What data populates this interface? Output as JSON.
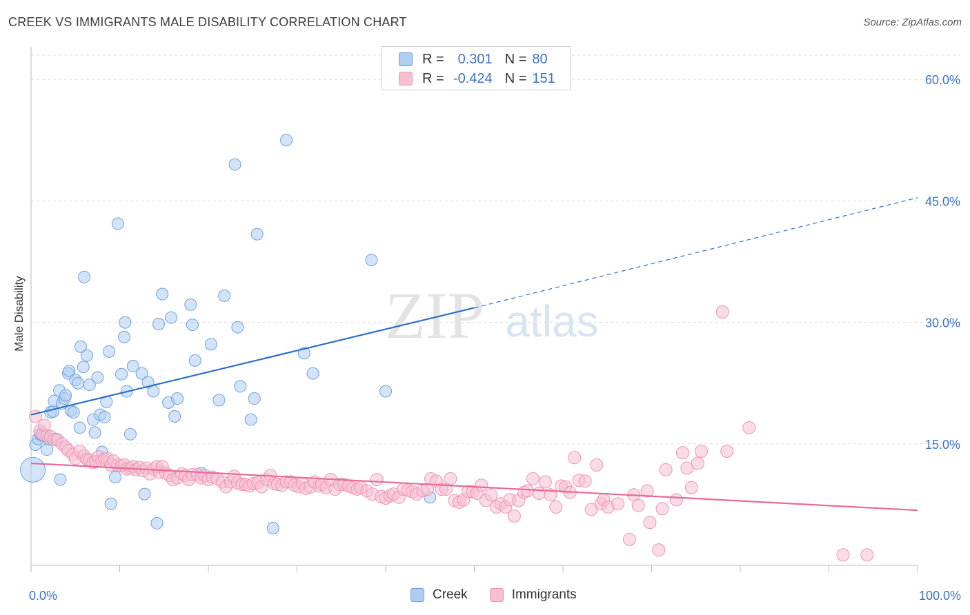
{
  "header": {
    "title": "CREEK VS IMMIGRANTS MALE DISABILITY CORRELATION CHART",
    "source": "Source: ZipAtlas.com"
  },
  "legend_top": {
    "rows": [
      {
        "r_label": "R =",
        "r_value": "0.301",
        "n_label": "N =",
        "n_value": "80"
      },
      {
        "r_label": "R =",
        "r_value": "-0.424",
        "n_label": "N =",
        "n_value": "151"
      }
    ]
  },
  "legend_bottom": {
    "creek": "Creek",
    "immigrants": "Immigrants"
  },
  "watermark": {
    "zip": "ZIP",
    "atlas": "atlas"
  },
  "colors": {
    "creek_fill": "#aecdf2",
    "creek_stroke": "#6fa0dc",
    "creek_line": "#2a6fcc",
    "imm_fill": "#f7bfd2",
    "imm_stroke": "#ec94b4",
    "imm_line": "#e8699a",
    "tick_label": "#3a74c4",
    "grid": "#dddddd"
  },
  "chart_data": {
    "type": "scatter",
    "title": "CREEK VS IMMIGRANTS MALE DISABILITY CORRELATION CHART",
    "xlabel": "",
    "ylabel": "Male Disability",
    "xlim": [
      0,
      100
    ],
    "ylim": [
      0,
      63
    ],
    "x_tick_labels": [
      "0.0%",
      "100.0%"
    ],
    "y_ticks": [
      15,
      30,
      45,
      60
    ],
    "y_tick_labels": [
      "15.0%",
      "30.0%",
      "45.0%",
      "60.0%"
    ],
    "grid": true,
    "legend_position": "top-center",
    "series": [
      {
        "name": "Creek",
        "r": 0.301,
        "n": 80,
        "trend": {
          "x0": 0,
          "y0": 18.6,
          "x1": 50,
          "y1": 31.8,
          "dash_to_x": 100,
          "dash_to_y": 45.4
        },
        "points": [
          [
            0.2,
            11.8
          ],
          [
            0.5,
            14.9
          ],
          [
            0.8,
            15.6
          ],
          [
            1.0,
            16.2
          ],
          [
            1.2,
            16.1
          ],
          [
            1.5,
            16.0
          ],
          [
            1.8,
            14.3
          ],
          [
            2.0,
            15.6
          ],
          [
            2.2,
            18.9
          ],
          [
            2.5,
            19.0
          ],
          [
            2.6,
            20.3
          ],
          [
            2.8,
            15.6
          ],
          [
            3.2,
            21.6
          ],
          [
            3.3,
            10.6
          ],
          [
            3.5,
            20.0
          ],
          [
            3.8,
            20.6
          ],
          [
            3.9,
            21.0
          ],
          [
            4.2,
            23.7
          ],
          [
            4.3,
            24.0
          ],
          [
            4.5,
            19.1
          ],
          [
            4.8,
            18.9
          ],
          [
            5.0,
            22.9
          ],
          [
            5.3,
            22.5
          ],
          [
            5.5,
            17.0
          ],
          [
            5.6,
            27.0
          ],
          [
            5.9,
            24.5
          ],
          [
            6.0,
            35.6
          ],
          [
            6.3,
            25.9
          ],
          [
            6.6,
            22.3
          ],
          [
            7.0,
            18.0
          ],
          [
            7.2,
            16.4
          ],
          [
            7.5,
            23.2
          ],
          [
            7.8,
            18.6
          ],
          [
            8.0,
            14.0
          ],
          [
            8.3,
            18.3
          ],
          [
            8.5,
            20.2
          ],
          [
            8.8,
            26.4
          ],
          [
            9.0,
            7.6
          ],
          [
            9.5,
            10.9
          ],
          [
            9.8,
            42.2
          ],
          [
            10.2,
            23.6
          ],
          [
            10.5,
            28.2
          ],
          [
            10.6,
            30.0
          ],
          [
            10.8,
            21.5
          ],
          [
            11.2,
            16.2
          ],
          [
            11.5,
            24.6
          ],
          [
            12.5,
            23.7
          ],
          [
            12.8,
            8.8
          ],
          [
            13.2,
            22.6
          ],
          [
            13.8,
            21.5
          ],
          [
            14.2,
            5.2
          ],
          [
            14.4,
            29.8
          ],
          [
            14.8,
            33.5
          ],
          [
            15.5,
            20.1
          ],
          [
            15.8,
            30.6
          ],
          [
            16.2,
            18.4
          ],
          [
            16.5,
            20.6
          ],
          [
            18.0,
            32.2
          ],
          [
            18.2,
            29.7
          ],
          [
            18.5,
            25.3
          ],
          [
            19.2,
            11.4
          ],
          [
            20.3,
            27.3
          ],
          [
            21.2,
            20.4
          ],
          [
            21.8,
            33.3
          ],
          [
            23.0,
            49.5
          ],
          [
            23.3,
            29.4
          ],
          [
            23.6,
            22.1
          ],
          [
            24.8,
            18.0
          ],
          [
            25.2,
            20.6
          ],
          [
            25.5,
            40.9
          ],
          [
            27.3,
            4.6
          ],
          [
            28.8,
            52.5
          ],
          [
            30.8,
            26.2
          ],
          [
            31.8,
            23.7
          ],
          [
            38.4,
            37.7
          ],
          [
            40.0,
            21.5
          ],
          [
            45.0,
            8.4
          ]
        ]
      },
      {
        "name": "Immigrants",
        "r": -0.424,
        "n": 151,
        "trend": {
          "x0": 0,
          "y0": 12.6,
          "x1": 100,
          "y1": 6.8
        },
        "points": [
          [
            0.5,
            18.4
          ],
          [
            1.0,
            16.6
          ],
          [
            1.3,
            16.2
          ],
          [
            1.5,
            17.3
          ],
          [
            1.8,
            16.0
          ],
          [
            2.2,
            15.9
          ],
          [
            2.6,
            15.5
          ],
          [
            3.0,
            15.5
          ],
          [
            3.5,
            15.0
          ],
          [
            3.9,
            14.6
          ],
          [
            4.2,
            14.2
          ],
          [
            4.7,
            13.7
          ],
          [
            5.0,
            13.2
          ],
          [
            5.5,
            14.1
          ],
          [
            6.0,
            13.5
          ],
          [
            6.3,
            13.1
          ],
          [
            6.6,
            13.0
          ],
          [
            7.0,
            12.7
          ],
          [
            7.3,
            12.8
          ],
          [
            7.6,
            13.4
          ],
          [
            8.0,
            12.9
          ],
          [
            8.3,
            13.1
          ],
          [
            8.6,
            13.2
          ],
          [
            9.0,
            12.4
          ],
          [
            9.3,
            12.9
          ],
          [
            9.8,
            12.4
          ],
          [
            10.2,
            12.3
          ],
          [
            10.5,
            12.4
          ],
          [
            10.8,
            11.9
          ],
          [
            11.2,
            12.0
          ],
          [
            11.5,
            12.2
          ],
          [
            11.8,
            11.8
          ],
          [
            12.2,
            12.1
          ],
          [
            12.6,
            11.7
          ],
          [
            13.0,
            12.0
          ],
          [
            13.4,
            11.3
          ],
          [
            13.8,
            11.9
          ],
          [
            14.2,
            12.2
          ],
          [
            14.5,
            11.5
          ],
          [
            14.8,
            12.2
          ],
          [
            15.2,
            11.4
          ],
          [
            15.6,
            11.1
          ],
          [
            16.0,
            10.6
          ],
          [
            16.5,
            10.8
          ],
          [
            17.0,
            11.3
          ],
          [
            17.4,
            11.1
          ],
          [
            17.8,
            10.6
          ],
          [
            18.2,
            11.2
          ],
          [
            18.8,
            11.2
          ],
          [
            19.2,
            10.8
          ],
          [
            19.6,
            11.1
          ],
          [
            20.0,
            10.6
          ],
          [
            20.5,
            10.9
          ],
          [
            21.0,
            10.7
          ],
          [
            21.6,
            10.3
          ],
          [
            22.0,
            9.7
          ],
          [
            22.5,
            10.3
          ],
          [
            22.9,
            11.0
          ],
          [
            23.3,
            10.2
          ],
          [
            23.8,
            10.0
          ],
          [
            24.2,
            10.0
          ],
          [
            24.6,
            9.8
          ],
          [
            25.1,
            10.1
          ],
          [
            25.6,
            10.2
          ],
          [
            26.0,
            9.7
          ],
          [
            26.6,
            10.6
          ],
          [
            27.0,
            11.1
          ],
          [
            27.4,
            10.1
          ],
          [
            27.8,
            10.0
          ],
          [
            28.3,
            9.9
          ],
          [
            28.8,
            10.3
          ],
          [
            29.3,
            10.3
          ],
          [
            29.7,
            9.9
          ],
          [
            30.2,
            9.7
          ],
          [
            30.6,
            10.1
          ],
          [
            31.0,
            9.5
          ],
          [
            31.5,
            9.7
          ],
          [
            32.0,
            10.3
          ],
          [
            32.5,
            9.8
          ],
          [
            32.8,
            10.0
          ],
          [
            33.3,
            9.6
          ],
          [
            33.8,
            10.6
          ],
          [
            34.3,
            9.4
          ],
          [
            34.8,
            10.0
          ],
          [
            35.3,
            10.0
          ],
          [
            35.8,
            9.8
          ],
          [
            36.3,
            9.6
          ],
          [
            36.8,
            9.4
          ],
          [
            37.2,
            9.6
          ],
          [
            37.9,
            9.2
          ],
          [
            38.5,
            8.8
          ],
          [
            39.0,
            10.6
          ],
          [
            39.5,
            8.5
          ],
          [
            40.0,
            8.3
          ],
          [
            40.5,
            8.6
          ],
          [
            40.9,
            8.8
          ],
          [
            41.5,
            8.4
          ],
          [
            42.0,
            9.4
          ],
          [
            42.5,
            9.3
          ],
          [
            43.0,
            9.1
          ],
          [
            43.5,
            8.8
          ],
          [
            44.2,
            9.2
          ],
          [
            44.7,
            9.4
          ],
          [
            45.1,
            10.7
          ],
          [
            45.7,
            10.4
          ],
          [
            46.3,
            9.4
          ],
          [
            46.8,
            9.4
          ],
          [
            47.3,
            10.7
          ],
          [
            47.8,
            8.0
          ],
          [
            48.3,
            7.8
          ],
          [
            48.8,
            8.1
          ],
          [
            49.3,
            9.1
          ],
          [
            49.8,
            9.1
          ],
          [
            50.3,
            8.9
          ],
          [
            50.8,
            9.9
          ],
          [
            51.3,
            8.0
          ],
          [
            51.9,
            8.7
          ],
          [
            52.5,
            7.2
          ],
          [
            53.0,
            7.6
          ],
          [
            53.5,
            7.2
          ],
          [
            54.0,
            8.1
          ],
          [
            54.5,
            6.1
          ],
          [
            55.0,
            8.0
          ],
          [
            55.6,
            9.0
          ],
          [
            56.0,
            9.2
          ],
          [
            56.6,
            10.7
          ],
          [
            57.3,
            8.9
          ],
          [
            58.0,
            10.3
          ],
          [
            58.6,
            8.7
          ],
          [
            59.2,
            7.2
          ],
          [
            59.8,
            9.8
          ],
          [
            60.3,
            9.7
          ],
          [
            60.8,
            9.0
          ],
          [
            61.3,
            13.3
          ],
          [
            61.8,
            10.5
          ],
          [
            62.5,
            10.4
          ],
          [
            63.2,
            6.9
          ],
          [
            63.8,
            12.4
          ],
          [
            64.3,
            7.6
          ],
          [
            64.6,
            8.1
          ],
          [
            65.1,
            7.2
          ],
          [
            66.2,
            7.6
          ],
          [
            67.5,
            3.2
          ],
          [
            68.0,
            8.7
          ],
          [
            68.5,
            7.4
          ],
          [
            69.5,
            9.2
          ],
          [
            69.8,
            5.3
          ],
          [
            70.8,
            1.9
          ],
          [
            71.2,
            7.0
          ],
          [
            71.6,
            11.8
          ],
          [
            72.8,
            8.1
          ],
          [
            73.5,
            13.9
          ],
          [
            74.0,
            12.0
          ],
          [
            74.5,
            9.6
          ],
          [
            75.2,
            12.6
          ],
          [
            75.6,
            14.1
          ],
          [
            78.0,
            31.3
          ],
          [
            78.5,
            14.1
          ],
          [
            81.0,
            17.0
          ],
          [
            91.6,
            1.3
          ],
          [
            94.3,
            1.3
          ]
        ]
      }
    ]
  }
}
